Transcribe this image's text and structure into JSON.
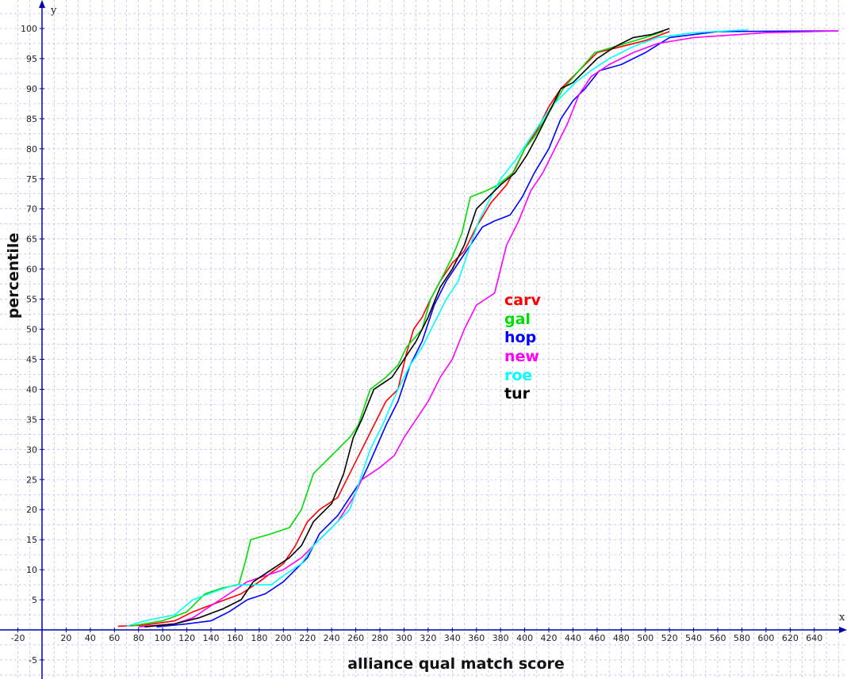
{
  "chart_data": {
    "type": "line",
    "xlabel": "alliance qual match score",
    "ylabel": "percentile",
    "x_axis_letter": "x",
    "y_axis_letter": "y",
    "xlim": [
      -25,
      660
    ],
    "ylim": [
      -7,
      102
    ],
    "grid": true,
    "legend_placement": "center",
    "x_ticks": [
      -20,
      20,
      40,
      60,
      80,
      100,
      120,
      140,
      160,
      180,
      200,
      220,
      240,
      260,
      280,
      300,
      320,
      340,
      360,
      380,
      400,
      420,
      440,
      460,
      480,
      500,
      520,
      540,
      560,
      580,
      600,
      620,
      640
    ],
    "y_ticks": [
      -5,
      5,
      10,
      15,
      20,
      25,
      30,
      35,
      40,
      45,
      50,
      55,
      60,
      65,
      70,
      75,
      80,
      85,
      90,
      95,
      100
    ],
    "series": [
      {
        "name": "carv",
        "color": "#ff0000",
        "points": [
          [
            63,
            0.6
          ],
          [
            85,
            0.8
          ],
          [
            110,
            1.5
          ],
          [
            125,
            3
          ],
          [
            145,
            4.5
          ],
          [
            165,
            6
          ],
          [
            180,
            8
          ],
          [
            200,
            11
          ],
          [
            210,
            14
          ],
          [
            220,
            18
          ],
          [
            230,
            20
          ],
          [
            245,
            22
          ],
          [
            250,
            24
          ],
          [
            255,
            26
          ],
          [
            265,
            30
          ],
          [
            275,
            34
          ],
          [
            285,
            38
          ],
          [
            295,
            40
          ],
          [
            302,
            46
          ],
          [
            308,
            50
          ],
          [
            315,
            52
          ],
          [
            322,
            55
          ],
          [
            330,
            58
          ],
          [
            340,
            61
          ],
          [
            350,
            63
          ],
          [
            360,
            67
          ],
          [
            372,
            71
          ],
          [
            385,
            74
          ],
          [
            393,
            77
          ],
          [
            400,
            80
          ],
          [
            410,
            83
          ],
          [
            420,
            87
          ],
          [
            430,
            90
          ],
          [
            440,
            92
          ],
          [
            450,
            94
          ],
          [
            460,
            96
          ],
          [
            480,
            97
          ],
          [
            500,
            98
          ],
          [
            520,
            99.5
          ]
        ]
      },
      {
        "name": "gal",
        "color": "#00dd00",
        "points": [
          [
            75,
            0.7
          ],
          [
            100,
            1.5
          ],
          [
            120,
            3
          ],
          [
            135,
            6
          ],
          [
            150,
            7
          ],
          [
            163,
            7.5
          ],
          [
            168,
            11
          ],
          [
            173,
            15
          ],
          [
            190,
            16
          ],
          [
            205,
            17
          ],
          [
            215,
            20
          ],
          [
            225,
            26
          ],
          [
            240,
            29
          ],
          [
            255,
            32
          ],
          [
            262,
            34
          ],
          [
            272,
            40
          ],
          [
            285,
            42
          ],
          [
            295,
            44
          ],
          [
            302,
            47
          ],
          [
            315,
            50
          ],
          [
            322,
            55
          ],
          [
            330,
            58
          ],
          [
            340,
            62
          ],
          [
            348,
            66
          ],
          [
            355,
            72
          ],
          [
            368,
            73
          ],
          [
            378,
            74
          ],
          [
            390,
            76
          ],
          [
            400,
            80
          ],
          [
            408,
            82
          ],
          [
            420,
            86
          ],
          [
            432,
            90
          ],
          [
            445,
            93
          ],
          [
            458,
            96
          ],
          [
            475,
            97
          ],
          [
            500,
            98.5
          ],
          [
            515,
            99.5
          ]
        ]
      },
      {
        "name": "hop",
        "color": "#0000ff",
        "points": [
          [
            95,
            0.5
          ],
          [
            120,
            1
          ],
          [
            140,
            1.5
          ],
          [
            155,
            3
          ],
          [
            170,
            5
          ],
          [
            185,
            6
          ],
          [
            200,
            8
          ],
          [
            210,
            10
          ],
          [
            220,
            12
          ],
          [
            230,
            16
          ],
          [
            245,
            19
          ],
          [
            255,
            22
          ],
          [
            265,
            25
          ],
          [
            272,
            28
          ],
          [
            285,
            34
          ],
          [
            295,
            38
          ],
          [
            305,
            44
          ],
          [
            315,
            48
          ],
          [
            325,
            54
          ],
          [
            335,
            58
          ],
          [
            345,
            61
          ],
          [
            355,
            64
          ],
          [
            365,
            67
          ],
          [
            375,
            68
          ],
          [
            388,
            69
          ],
          [
            398,
            72
          ],
          [
            408,
            76
          ],
          [
            420,
            80
          ],
          [
            430,
            85
          ],
          [
            440,
            88
          ],
          [
            450,
            90
          ],
          [
            462,
            93
          ],
          [
            480,
            94
          ],
          [
            500,
            96
          ],
          [
            520,
            98.5
          ],
          [
            560,
            99.5
          ],
          [
            660,
            99.6
          ]
        ]
      },
      {
        "name": "new",
        "color": "#ff00ff",
        "points": [
          [
            80,
            0.5
          ],
          [
            110,
            1
          ],
          [
            125,
            2
          ],
          [
            140,
            4
          ],
          [
            155,
            6
          ],
          [
            170,
            8
          ],
          [
            185,
            9
          ],
          [
            200,
            10
          ],
          [
            215,
            12
          ],
          [
            230,
            15
          ],
          [
            245,
            18
          ],
          [
            258,
            22
          ],
          [
            265,
            25
          ],
          [
            280,
            27
          ],
          [
            292,
            29
          ],
          [
            300,
            32
          ],
          [
            310,
            35
          ],
          [
            320,
            38
          ],
          [
            330,
            42
          ],
          [
            340,
            45
          ],
          [
            350,
            50
          ],
          [
            360,
            54
          ],
          [
            375,
            56
          ],
          [
            385,
            64
          ],
          [
            395,
            68
          ],
          [
            405,
            73
          ],
          [
            415,
            76
          ],
          [
            425,
            80
          ],
          [
            435,
            84
          ],
          [
            445,
            89
          ],
          [
            455,
            92
          ],
          [
            470,
            94
          ],
          [
            490,
            96
          ],
          [
            510,
            97.5
          ],
          [
            540,
            98.5
          ],
          [
            600,
            99.3
          ],
          [
            660,
            99.6
          ]
        ]
      },
      {
        "name": "roe",
        "color": "#00ffff",
        "points": [
          [
            70,
            0.6
          ],
          [
            85,
            1.5
          ],
          [
            110,
            2.5
          ],
          [
            125,
            5
          ],
          [
            145,
            6.5
          ],
          [
            160,
            7.5
          ],
          [
            175,
            7.5
          ],
          [
            190,
            7.5
          ],
          [
            200,
            9
          ],
          [
            215,
            11
          ],
          [
            225,
            14
          ],
          [
            240,
            17
          ],
          [
            255,
            20
          ],
          [
            262,
            24
          ],
          [
            272,
            30
          ],
          [
            282,
            34
          ],
          [
            295,
            40
          ],
          [
            305,
            44
          ],
          [
            315,
            47
          ],
          [
            325,
            51
          ],
          [
            335,
            55
          ],
          [
            345,
            58
          ],
          [
            355,
            64
          ],
          [
            362,
            68
          ],
          [
            372,
            72
          ],
          [
            380,
            75
          ],
          [
            392,
            78
          ],
          [
            402,
            81
          ],
          [
            412,
            84
          ],
          [
            422,
            87
          ],
          [
            432,
            89
          ],
          [
            442,
            91
          ],
          [
            455,
            93
          ],
          [
            470,
            95
          ],
          [
            490,
            97
          ],
          [
            510,
            98.5
          ],
          [
            540,
            99.3
          ],
          [
            585,
            99.8
          ]
        ]
      },
      {
        "name": "tur",
        "color": "#000000",
        "points": [
          [
            85,
            0.5
          ],
          [
            110,
            1
          ],
          [
            130,
            2
          ],
          [
            150,
            3.5
          ],
          [
            165,
            5
          ],
          [
            175,
            8
          ],
          [
            190,
            10
          ],
          [
            205,
            12
          ],
          [
            215,
            14
          ],
          [
            225,
            18
          ],
          [
            240,
            21
          ],
          [
            250,
            26
          ],
          [
            258,
            32
          ],
          [
            265,
            35
          ],
          [
            275,
            40
          ],
          [
            290,
            42
          ],
          [
            300,
            45
          ],
          [
            310,
            48
          ],
          [
            320,
            52
          ],
          [
            330,
            57
          ],
          [
            340,
            60
          ],
          [
            350,
            64
          ],
          [
            360,
            70
          ],
          [
            370,
            72
          ],
          [
            380,
            74
          ],
          [
            392,
            76
          ],
          [
            402,
            79
          ],
          [
            410,
            82
          ],
          [
            420,
            86
          ],
          [
            430,
            90
          ],
          [
            440,
            91
          ],
          [
            450,
            93
          ],
          [
            460,
            95
          ],
          [
            475,
            97
          ],
          [
            490,
            98.5
          ],
          [
            505,
            99
          ],
          [
            520,
            100
          ]
        ]
      }
    ]
  }
}
